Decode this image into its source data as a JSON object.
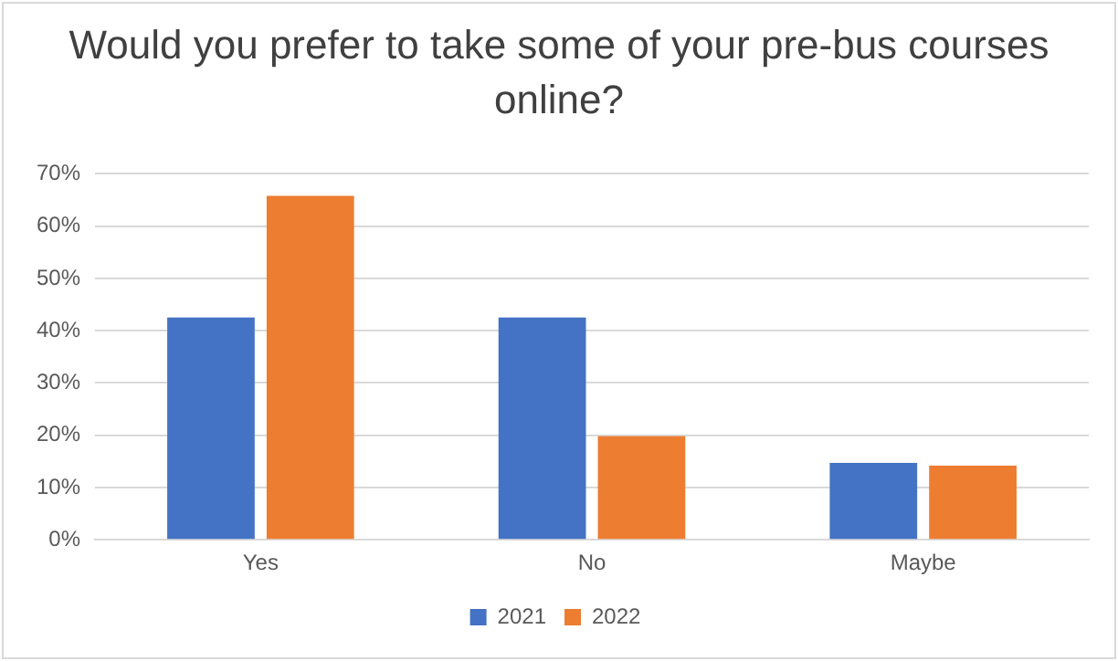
{
  "chart_data": {
    "type": "bar",
    "title": "Would you prefer to take some of your pre-bus courses online?",
    "categories": [
      "Yes",
      "No",
      "Maybe"
    ],
    "series": [
      {
        "name": "2021",
        "color": "#4472c4",
        "values": [
          42.5,
          42.5,
          14.7
        ]
      },
      {
        "name": "2022",
        "color": "#ed7d31",
        "values": [
          65.8,
          19.8,
          14.2
        ]
      }
    ],
    "ylim": [
      0,
      70
    ],
    "yticks": [
      {
        "value": 0,
        "label": "0%"
      },
      {
        "value": 10,
        "label": "10%"
      },
      {
        "value": 20,
        "label": "20%"
      },
      {
        "value": 30,
        "label": "30%"
      },
      {
        "value": 40,
        "label": "40%"
      },
      {
        "value": 50,
        "label": "50%"
      },
      {
        "value": 60,
        "label": "60%"
      },
      {
        "value": 70,
        "label": "70%"
      }
    ],
    "grid": "y",
    "legend": "bottom"
  }
}
